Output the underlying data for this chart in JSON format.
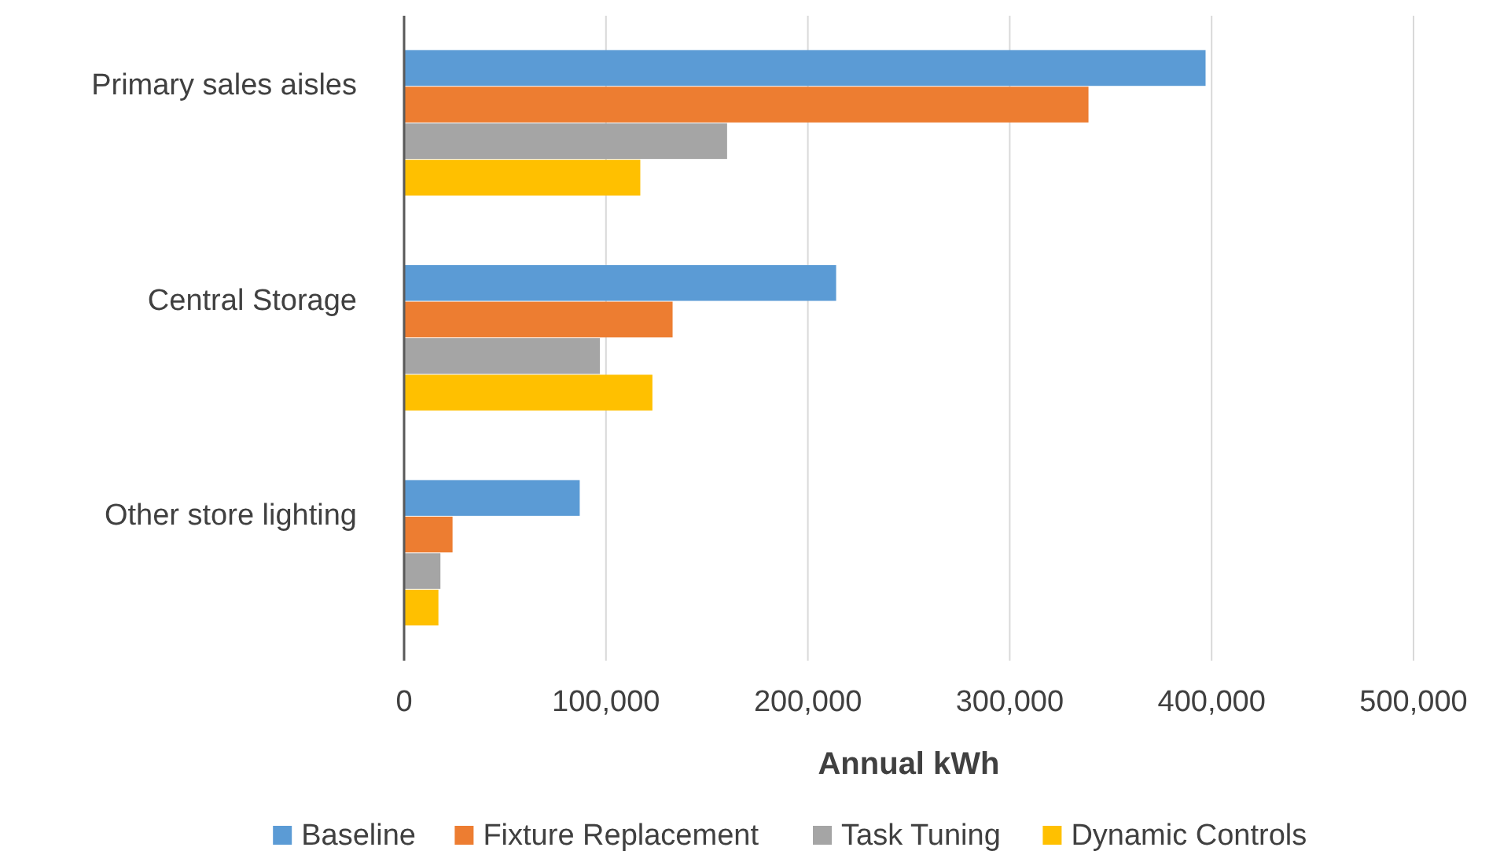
{
  "chart_data": {
    "type": "bar",
    "orientation": "horizontal",
    "xlabel": "Annual kWh",
    "categories": [
      "Primary sales aisles",
      "Central Storage",
      "Other store lighting"
    ],
    "series": [
      {
        "name": "Baseline",
        "color": "#5b9bd5",
        "values": [
          397000,
          214000,
          87000
        ]
      },
      {
        "name": "Fixture Replacement",
        "color": "#ed7d31",
        "values": [
          339000,
          133000,
          24000
        ]
      },
      {
        "name": "Task Tuning",
        "color": "#a5a5a5",
        "values": [
          160000,
          97000,
          18000
        ]
      },
      {
        "name": "Dynamic Controls",
        "color": "#ffc000",
        "values": [
          117000,
          123000,
          17000
        ]
      }
    ],
    "xlim": [
      0,
      500000
    ],
    "xticks": [
      0,
      {
        "value": 100000,
        "label": "100,000"
      },
      {
        "value": 200000,
        "label": "200,000"
      },
      {
        "value": 300000,
        "label": "300,000"
      },
      {
        "value": 400000,
        "label": "400,000"
      },
      {
        "value": 500000,
        "label": "500,000"
      }
    ],
    "grid": "x",
    "legend": "bottom"
  }
}
